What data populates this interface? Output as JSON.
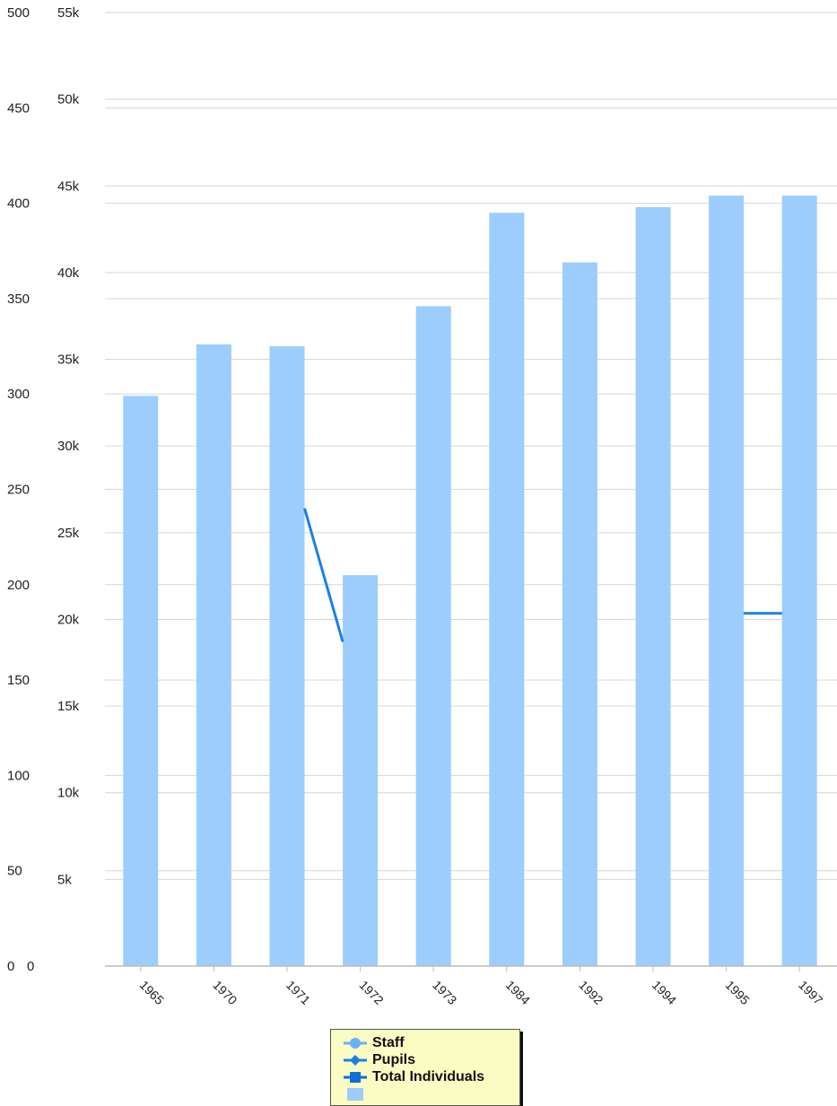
{
  "chart_data": {
    "type": "bar",
    "categories": [
      "1965",
      "1970",
      "1971",
      "1972",
      "1973",
      "1984",
      "1992",
      "1994",
      "1995",
      "1997"
    ],
    "left_axis_ticks": [
      "0",
      "50",
      "100",
      "150",
      "200",
      "250",
      "300",
      "350",
      "400",
      "450",
      "500"
    ],
    "right_axis_ticks": [
      "5k",
      "10k",
      "15k",
      "20k",
      "25k",
      "30k",
      "35k",
      "40k",
      "45k",
      "50k",
      "55k"
    ],
    "ylim_left": [
      0,
      500
    ],
    "ylim_right": [
      0,
      55000
    ],
    "series": [
      {
        "name": "Staff",
        "type": "line",
        "axis": "left",
        "values": [
          null,
          null,
          null,
          null,
          null,
          null,
          null,
          null,
          null,
          null
        ]
      },
      {
        "name": "Pupils",
        "type": "line",
        "axis": "left",
        "values": [
          null,
          null,
          240,
          170,
          null,
          null,
          null,
          null,
          185,
          185
        ]
      },
      {
        "name": "Total Individuals",
        "type": "line",
        "axis": "left",
        "values": [
          null,
          null,
          null,
          null,
          null,
          null,
          null,
          null,
          null,
          null
        ]
      },
      {
        "name": "",
        "type": "bar",
        "axis": "left",
        "values": [
          299,
          326,
          325,
          205,
          346,
          395,
          369,
          398,
          404,
          404
        ]
      }
    ],
    "grid": true,
    "legend_position": "bottom-center",
    "colors": {
      "bar": "#9ccdfc",
      "line": "#1a80e6",
      "grid": "#d6d6d6",
      "legend_bg": "#fbfbc4"
    }
  },
  "legend": [
    {
      "label": "Staff",
      "icon": "circle-marker-icon"
    },
    {
      "label": "Pupils",
      "icon": "diamond-marker-icon"
    },
    {
      "label": "Total Individuals",
      "icon": "square-marker-icon"
    },
    {
      "label": "",
      "icon": "bar-swatch-icon"
    }
  ]
}
